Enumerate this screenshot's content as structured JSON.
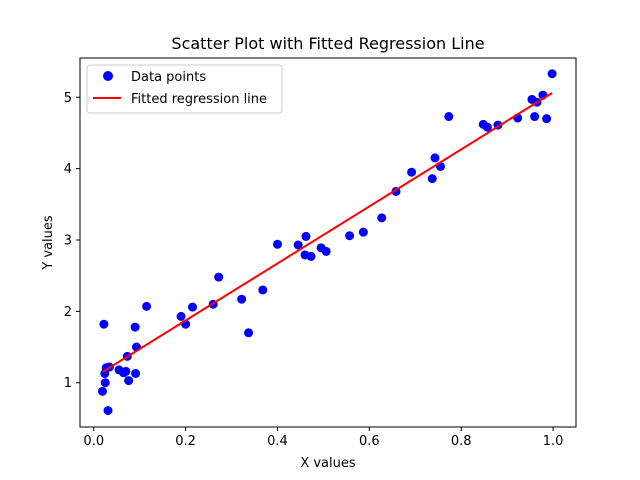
{
  "chart_data": {
    "type": "scatter",
    "title": "Scatter Plot with Fitted Regression Line",
    "xlabel": "X values",
    "ylabel": "Y values",
    "xlim": [
      -0.03,
      1.05
    ],
    "ylim": [
      0.38,
      5.55
    ],
    "xticks": [
      0.0,
      0.2,
      0.4,
      0.6,
      0.8,
      1.0
    ],
    "xtick_labels": [
      "0.0",
      "0.2",
      "0.4",
      "0.6",
      "0.8",
      "1.0"
    ],
    "yticks": [
      1,
      2,
      3,
      4,
      5
    ],
    "ytick_labels": [
      "1",
      "2",
      "3",
      "4",
      "5"
    ],
    "grid": false,
    "legend_position": "upper-left",
    "series": [
      {
        "name": "Data points",
        "kind": "scatter",
        "color": "#0000ff",
        "points": [
          [
            0.019,
            0.88
          ],
          [
            0.022,
            1.82
          ],
          [
            0.024,
            1.13
          ],
          [
            0.025,
            1.0
          ],
          [
            0.027,
            1.21
          ],
          [
            0.031,
            0.61
          ],
          [
            0.034,
            1.22
          ],
          [
            0.055,
            1.18
          ],
          [
            0.065,
            1.14
          ],
          [
            0.07,
            1.16
          ],
          [
            0.073,
            1.37
          ],
          [
            0.076,
            1.03
          ],
          [
            0.09,
            1.78
          ],
          [
            0.091,
            1.13
          ],
          [
            0.093,
            1.5
          ],
          [
            0.115,
            2.07
          ],
          [
            0.19,
            1.93
          ],
          [
            0.2,
            1.82
          ],
          [
            0.215,
            2.06
          ],
          [
            0.26,
            2.1
          ],
          [
            0.272,
            2.48
          ],
          [
            0.322,
            2.17
          ],
          [
            0.337,
            1.7
          ],
          [
            0.368,
            2.3
          ],
          [
            0.4,
            2.94
          ],
          [
            0.445,
            2.93
          ],
          [
            0.46,
            2.79
          ],
          [
            0.462,
            3.05
          ],
          [
            0.473,
            2.77
          ],
          [
            0.495,
            2.89
          ],
          [
            0.506,
            2.84
          ],
          [
            0.557,
            3.06
          ],
          [
            0.587,
            3.11
          ],
          [
            0.627,
            3.31
          ],
          [
            0.658,
            3.68
          ],
          [
            0.692,
            3.95
          ],
          [
            0.737,
            3.86
          ],
          [
            0.743,
            4.15
          ],
          [
            0.755,
            4.03
          ],
          [
            0.773,
            4.73
          ],
          [
            0.848,
            4.62
          ],
          [
            0.857,
            4.58
          ],
          [
            0.88,
            4.61
          ],
          [
            0.923,
            4.71
          ],
          [
            0.954,
            4.97
          ],
          [
            0.96,
            4.73
          ],
          [
            0.965,
            4.93
          ],
          [
            0.978,
            5.03
          ],
          [
            0.986,
            4.7
          ],
          [
            0.998,
            5.33
          ]
        ]
      },
      {
        "name": "Fitted regression line",
        "kind": "line",
        "color": "#ff0000",
        "points": [
          [
            0.019,
            1.15
          ],
          [
            0.998,
            5.06
          ]
        ]
      }
    ]
  }
}
